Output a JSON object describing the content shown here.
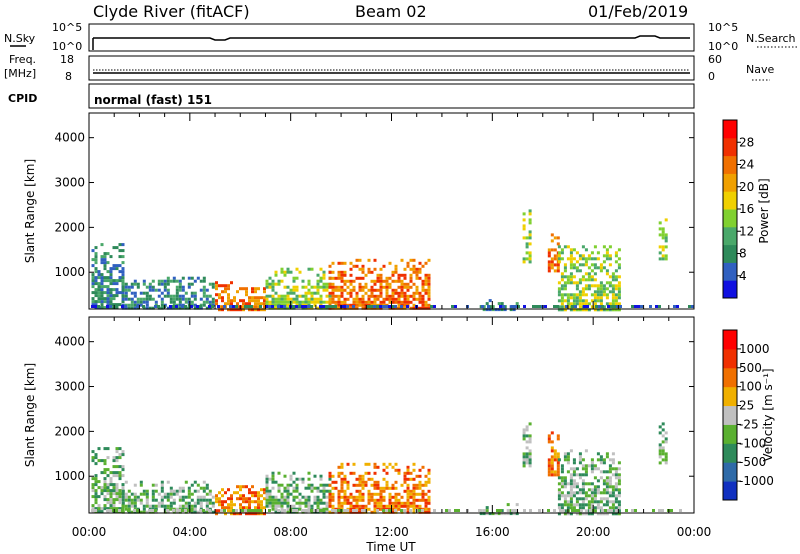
{
  "header": {
    "station": "Clyde River (fitACF)",
    "beam": "Beam 02",
    "date": "01/Feb/2019"
  },
  "strip_panels": {
    "nsky_label": "N.Sky",
    "nsky_ticks": [
      "10^5",
      "10^0"
    ],
    "nsearch_label": "N.Search",
    "nsearch_ticks": [
      "10^5",
      "10^0"
    ],
    "freq_label_1": "Freq.",
    "freq_label_2": "[MHz]",
    "freq_ticks": [
      "18",
      "8"
    ],
    "nave_label": "Nave",
    "nave_ticks": [
      "60",
      "0"
    ],
    "cpid_label": "CPID",
    "cpid_text": "normal (fast) 151"
  },
  "chart_data": [
    {
      "type": "heatmap",
      "name": "power",
      "ylabel": "Slant Range [km]",
      "xlabel": "",
      "yticks": [
        "1000",
        "2000",
        "3000",
        "4000"
      ],
      "xticks": [
        "00:00",
        "04:00",
        "08:00",
        "12:00",
        "16:00",
        "20:00",
        "00:00"
      ],
      "xrange_hours": [
        0,
        24
      ],
      "yrange_km": [
        180,
        4550
      ],
      "colorbar": {
        "label": "Power [dB]",
        "ticks": [
          "4",
          "8",
          "12",
          "16",
          "20",
          "24",
          "28"
        ],
        "colors": [
          "#1010e0",
          "#3060c0",
          "#2e8a5a",
          "#4aa86a",
          "#80d030",
          "#f0d000",
          "#f0a000",
          "#f07000",
          "#f03000",
          "#ff0000"
        ]
      },
      "echo_regions": [
        {
          "t_start": 0.1,
          "t_end": 1.3,
          "r_low": 180,
          "r_high": 1650,
          "level": "low"
        },
        {
          "t_start": 1.3,
          "t_end": 4.9,
          "r_low": 180,
          "r_high": 900,
          "level": "low"
        },
        {
          "t_start": 5.0,
          "t_end": 7.0,
          "r_low": 180,
          "r_high": 800,
          "level": "high"
        },
        {
          "t_start": 7.0,
          "t_end": 9.5,
          "r_low": 180,
          "r_high": 1100,
          "level": "mid"
        },
        {
          "t_start": 9.5,
          "t_end": 13.5,
          "r_low": 180,
          "r_high": 1300,
          "level": "high"
        },
        {
          "t_start": 15.5,
          "t_end": 17.0,
          "r_low": 180,
          "r_high": 400,
          "level": "low"
        },
        {
          "t_start": 17.2,
          "t_end": 17.5,
          "r_low": 1200,
          "r_high": 2400,
          "level": "mid"
        },
        {
          "t_start": 18.2,
          "t_end": 18.6,
          "r_low": 1000,
          "r_high": 2000,
          "level": "high"
        },
        {
          "t_start": 18.6,
          "t_end": 21.0,
          "r_low": 180,
          "r_high": 1600,
          "level": "mid"
        },
        {
          "t_start": 22.6,
          "t_end": 22.9,
          "r_low": 1300,
          "r_high": 2200,
          "level": "mid"
        }
      ]
    },
    {
      "type": "heatmap",
      "name": "velocity",
      "ylabel": "Slant Range [km]",
      "xlabel": "Time UT",
      "yticks": [
        "1000",
        "2000",
        "3000",
        "4000"
      ],
      "xticks": [
        "00:00",
        "04:00",
        "08:00",
        "12:00",
        "16:00",
        "20:00",
        "00:00"
      ],
      "xrange_hours": [
        0,
        24
      ],
      "yrange_km": [
        180,
        4550
      ],
      "colorbar": {
        "label": "Velocity [m s⁻¹]",
        "ticks": [
          "1000",
          "500",
          "100",
          "25",
          "-25",
          "-100",
          "-500",
          "-1000"
        ],
        "colors": [
          "#1030c0",
          "#2e6aa8",
          "#2e8a5a",
          "#5ab030",
          "#c0c0c0",
          "#f0b000",
          "#f07000",
          "#f03000",
          "#ff0000"
        ]
      }
    }
  ]
}
